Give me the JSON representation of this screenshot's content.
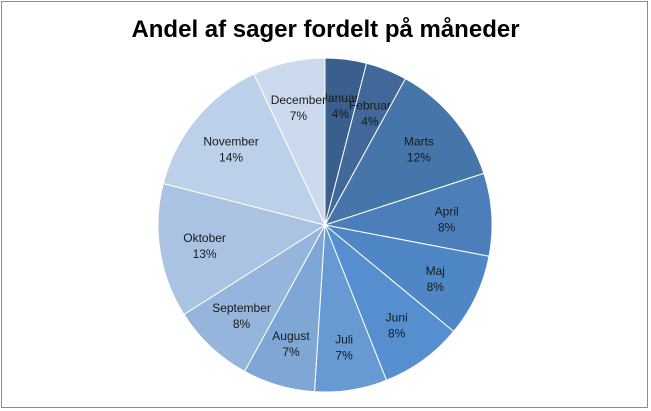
{
  "chart_data": {
    "type": "pie",
    "title": "Andel af sager fordelt på måneder",
    "slices": [
      {
        "label": "Januar",
        "value": 4,
        "display": "4%",
        "color": "#3b5f8c"
      },
      {
        "label": "Februar",
        "value": 4,
        "display": "4%",
        "color": "#416898"
      },
      {
        "label": "Marts",
        "value": 12,
        "display": "12%",
        "color": "#4675aa"
      },
      {
        "label": "April",
        "value": 8,
        "display": "8%",
        "color": "#4c7fba"
      },
      {
        "label": "Maj",
        "value": 8,
        "display": "8%",
        "color": "#4f86c6"
      },
      {
        "label": "Juni",
        "value": 8,
        "display": "8%",
        "color": "#558fd0"
      },
      {
        "label": "Juli",
        "value": 7,
        "display": "7%",
        "color": "#6799d2"
      },
      {
        "label": "August",
        "value": 7,
        "display": "7%",
        "color": "#7ea7d6"
      },
      {
        "label": "September",
        "value": 8,
        "display": "8%",
        "color": "#95b5dc"
      },
      {
        "label": "Oktober",
        "value": 13,
        "display": "13%",
        "color": "#aac3e3"
      },
      {
        "label": "November",
        "value": 14,
        "display": "14%",
        "color": "#bcd0ea"
      },
      {
        "label": "December",
        "value": 7,
        "display": "7%",
        "color": "#ccdaee"
      }
    ],
    "legend": "none",
    "data_labels": "inside"
  }
}
